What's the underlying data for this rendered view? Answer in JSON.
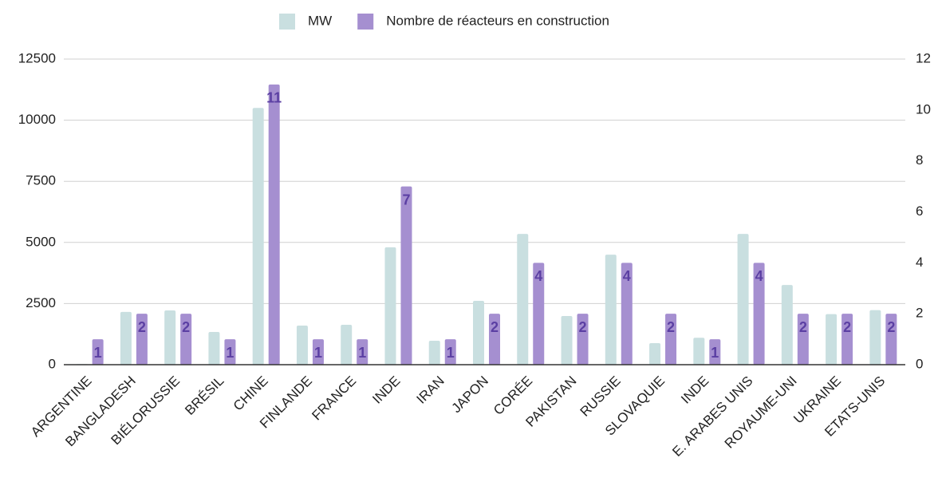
{
  "chart_data": {
    "type": "bar",
    "categories": [
      "ARGENTINE",
      "BANGLADESH",
      "BIÉLORUSSIE",
      "BRÉSIL",
      "CHINE",
      "FINLANDE",
      "FRANCE",
      "INDE",
      "IRAN",
      "JAPON",
      "CORÉE",
      "PAKISTAN",
      "RUSSIE",
      "SLOVAQUIE",
      "INDE",
      "E. ARABES UNIS",
      "ROYAUME-UNI",
      "UKRAINE",
      "ETATS-UNIS"
    ],
    "series": [
      {
        "name": "MW",
        "color": "#c9dfe0",
        "values": [
          25,
          2160,
          2220,
          1340,
          10500,
          1600,
          1630,
          4800,
          980,
          2610,
          5350,
          1990,
          4500,
          880,
          1100,
          5350,
          3260,
          2070,
          2230
        ]
      },
      {
        "name": "Nombre de réacteurs en construction",
        "color": "#a58fd0",
        "axis": "y2",
        "values": [
          1,
          2,
          2,
          1,
          11,
          1,
          1,
          7,
          1,
          2,
          4,
          2,
          4,
          2,
          1,
          4,
          2,
          2,
          2
        ]
      }
    ],
    "ylim": [
      0,
      12500
    ],
    "yticks": [
      0,
      2500,
      5000,
      7500,
      10000,
      12500
    ],
    "y2lim": [
      0,
      12
    ],
    "y2ticks": [
      0,
      2,
      4,
      6,
      8,
      10,
      12
    ],
    "grid": true,
    "legend": "top",
    "data_labels_series": 1
  }
}
